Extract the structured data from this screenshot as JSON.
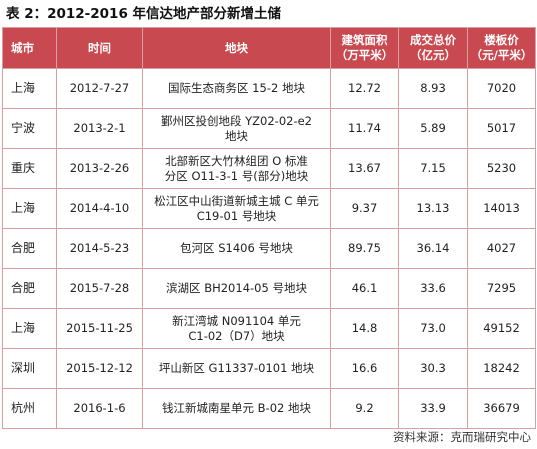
{
  "title": "表 2：2012-2016 年信达地产部分新增土储",
  "columns": {
    "city": "城市",
    "date": "时间",
    "plot": "地块",
    "area": "建筑面积\n（万平米）",
    "price": "成交总价\n（亿元）",
    "unit_price": "楼板价\n（元/平米）"
  },
  "rows": [
    {
      "city": "上海",
      "date": "2012-7-27",
      "plot": "国际生态商务区 15-2 地块",
      "area": "12.72",
      "price": "8.93",
      "unit_price": "7020"
    },
    {
      "city": "宁波",
      "date": "2013-2-1",
      "plot": "鄞州区投创地段 YZ02-02-e2\n地块",
      "area": "11.74",
      "price": "5.89",
      "unit_price": "5017"
    },
    {
      "city": "重庆",
      "date": "2013-2-26",
      "plot": "北部新区大竹林组团 O 标准\n分区 O11-3-1 号(部分)地块",
      "area": "13.67",
      "price": "7.15",
      "unit_price": "5230"
    },
    {
      "city": "上海",
      "date": "2014-4-10",
      "plot": "松江区中山街道新城主城 C 单元\nC19-01 号地块",
      "area": "9.37",
      "price": "13.13",
      "unit_price": "14013"
    },
    {
      "city": "合肥",
      "date": "2014-5-23",
      "plot": "包河区 S1406 号地块",
      "area": "89.75",
      "price": "36.14",
      "unit_price": "4027"
    },
    {
      "city": "合肥",
      "date": "2015-7-28",
      "plot": "滨湖区 BH2014-05 号地块",
      "area": "46.1",
      "price": "33.6",
      "unit_price": "7295"
    },
    {
      "city": "上海",
      "date": "2015-11-25",
      "plot": "新江湾城 N091104 单元\nC1-02（D7）地块",
      "area": "14.8",
      "price": "73.0",
      "unit_price": "49152"
    },
    {
      "city": "深圳",
      "date": "2015-12-12",
      "plot": "坪山新区 G11337-0101 地块",
      "area": "16.6",
      "price": "30.3",
      "unit_price": "18242"
    },
    {
      "city": "杭州",
      "date": "2016-1-6",
      "plot": "钱江新城南星单元 B-02 地块",
      "area": "9.2",
      "price": "33.9",
      "unit_price": "36679"
    }
  ],
  "source": "资料来源：克而瑞研究中心",
  "colors": {
    "header_bg": "#c8494f",
    "header_text": "#ffffff",
    "border": "#d9a0a4"
  }
}
